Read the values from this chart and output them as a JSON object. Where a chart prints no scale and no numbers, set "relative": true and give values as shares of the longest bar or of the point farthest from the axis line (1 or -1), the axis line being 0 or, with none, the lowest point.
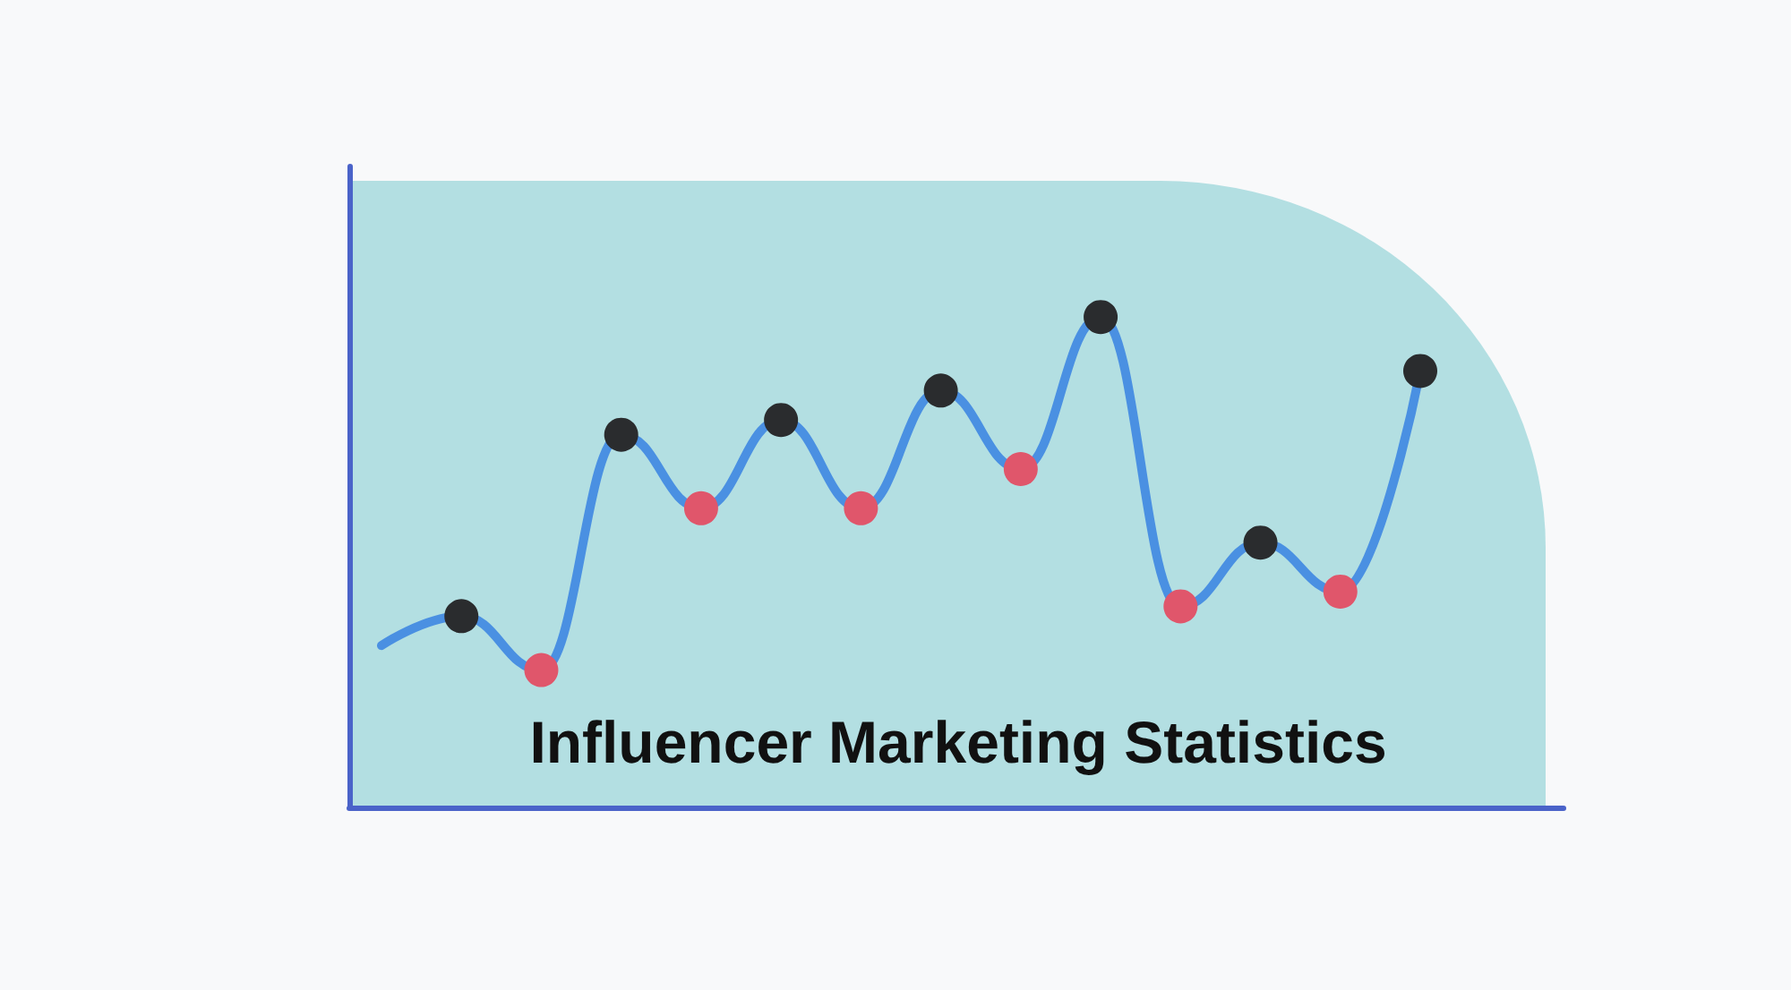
{
  "chart_data": {
    "type": "line",
    "title": "Influencer Marketing Statistics",
    "relative": true,
    "categories": [
      null,
      null,
      null,
      null,
      null,
      null,
      null,
      null,
      null,
      null,
      null,
      null,
      null,
      null
    ],
    "series": [
      {
        "color": "#4a90e2",
        "values": [
          0.33,
          0.39,
          0.28,
          0.76,
          0.61,
          0.79,
          0.61,
          0.85,
          0.69,
          1,
          0.41,
          0.54,
          0.44,
          0.89
        ],
        "colors": [
          null,
          "#2a2c2e",
          "#e0566b",
          "#2a2c2e",
          "#e0566b",
          "#2a2c2e",
          "#e0566b",
          "#2a2c2e",
          "#e0566b",
          "#2a2c2e",
          "#e0566b",
          "#2a2c2e",
          "#e0566b",
          "#2a2c2e"
        ]
      }
    ],
    "marker": "circle",
    "line_style": "solid"
  }
}
